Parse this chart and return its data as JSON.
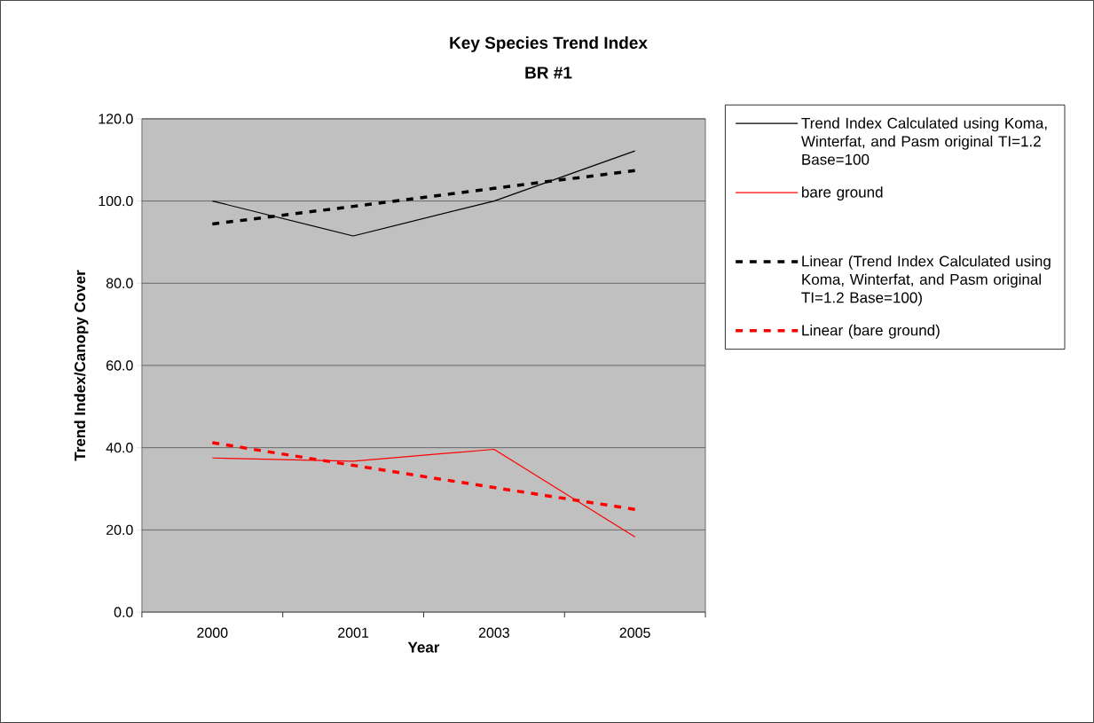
{
  "chart_data": {
    "type": "line",
    "title": "Key Species Trend Index",
    "subtitle": "BR #1",
    "xlabel": "Year",
    "ylabel": "Trend Index/Canopy Cover",
    "categories": [
      "2000",
      "2001",
      "2003",
      "2005"
    ],
    "series": [
      {
        "name": "Trend Index Calculated using Koma, Winterfat, and Pasm original TI=1.2 Base=100",
        "color": "#000000",
        "values": [
          100,
          91.5,
          100,
          112.2
        ],
        "line_style": "solid"
      },
      {
        "name": "bare ground",
        "color": "#ff0000",
        "values": [
          37.5,
          36.7,
          39.6,
          18.3
        ],
        "line_style": "solid"
      },
      {
        "name": "Linear (Trend Index Calculated using Koma, Winterfat, and Pasm original TI=1.2 Base=100)",
        "color": "#000000",
        "values": [
          94.4,
          98.7,
          103.1,
          107.4
        ],
        "line_style": "dashed"
      },
      {
        "name": "Linear (bare ground)",
        "color": "#ff0000",
        "values": [
          41.2,
          35.7,
          30.3,
          25.0
        ],
        "line_style": "dashed"
      }
    ],
    "ylim": [
      0,
      120
    ],
    "yticks": [
      {
        "value": 0,
        "label": "0.0"
      },
      {
        "value": 20,
        "label": "20.0"
      },
      {
        "value": 40,
        "label": "40.0"
      },
      {
        "value": 60,
        "label": "60.0"
      },
      {
        "value": 80,
        "label": "80.0"
      },
      {
        "value": 100,
        "label": "100.0"
      },
      {
        "value": 120,
        "label": "120.0"
      }
    ],
    "grid": "y",
    "legend": "right"
  }
}
